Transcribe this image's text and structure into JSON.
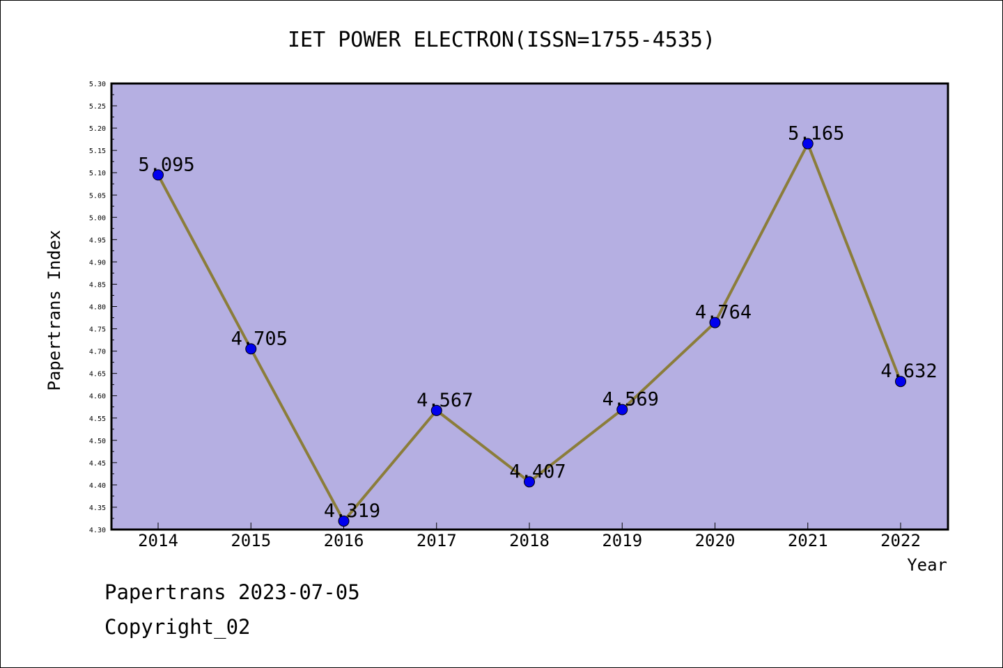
{
  "chart_data": {
    "type": "line",
    "title": "IET POWER ELECTRON(ISSN=1755-4535)",
    "xlabel": "Year",
    "ylabel": "Papertrans Index",
    "categories": [
      "2014",
      "2015",
      "2016",
      "2017",
      "2018",
      "2019",
      "2020",
      "2021",
      "2022"
    ],
    "values": [
      5.095,
      4.705,
      4.319,
      4.567,
      4.407,
      4.569,
      4.764,
      5.165,
      4.632
    ],
    "data_labels": [
      "5.095",
      "4.705",
      "4.319",
      "4.567",
      "4.407",
      "4.569",
      "4.764",
      "5.165",
      "4.632"
    ],
    "ylim": [
      4.3,
      5.3
    ],
    "yticks": [
      "4.30",
      "4.35",
      "4.40",
      "4.45",
      "4.50",
      "4.55",
      "4.60",
      "4.65",
      "4.70",
      "4.75",
      "4.80",
      "4.85",
      "4.90",
      "4.95",
      "5.00",
      "5.05",
      "5.10",
      "5.15",
      "5.20",
      "5.25",
      "5.30"
    ],
    "grid": false,
    "colors": {
      "plot_background": "#b5afe2",
      "line": "#8b7d3a",
      "marker": "#0000ee"
    }
  },
  "footer": {
    "date_line": "Papertrans 2023-07-05",
    "copyright": "Copyright_02"
  }
}
